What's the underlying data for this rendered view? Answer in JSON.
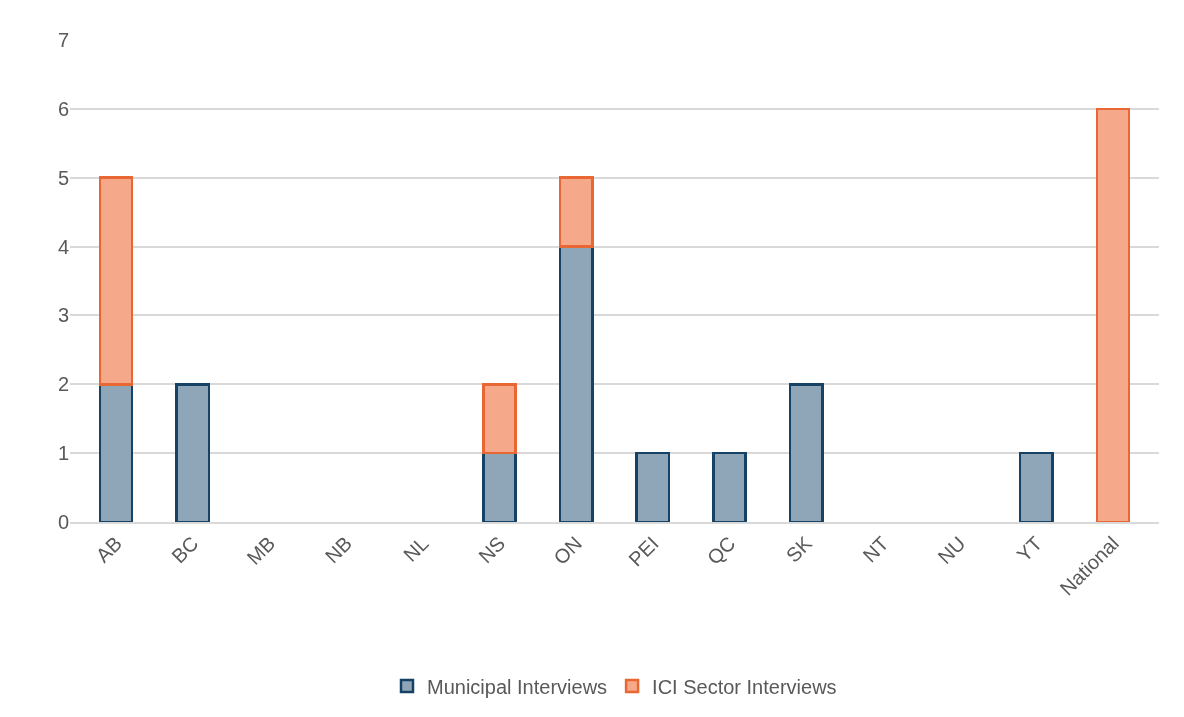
{
  "chart_data": {
    "type": "bar",
    "stacked": true,
    "categories": [
      "AB",
      "BC",
      "MB",
      "NB",
      "NL",
      "NS",
      "ON",
      "PEI",
      "QC",
      "SK",
      "NT",
      "NU",
      "YT",
      "National"
    ],
    "series": [
      {
        "name": "Municipal Interviews",
        "color": "#8ea6b8",
        "values": [
          2,
          2,
          0,
          0,
          0,
          1,
          4,
          1,
          1,
          2,
          0,
          0,
          1,
          0
        ]
      },
      {
        "name": "ICI Sector Interviews",
        "color": "#f5a98a",
        "values": [
          3,
          0,
          0,
          0,
          0,
          1,
          1,
          0,
          0,
          0,
          0,
          0,
          0,
          6
        ]
      }
    ],
    "ylim": [
      0,
      7
    ],
    "yticks": [
      0,
      1,
      2,
      3,
      4,
      5,
      6,
      7
    ],
    "grid": "y",
    "legend": "bottom"
  }
}
